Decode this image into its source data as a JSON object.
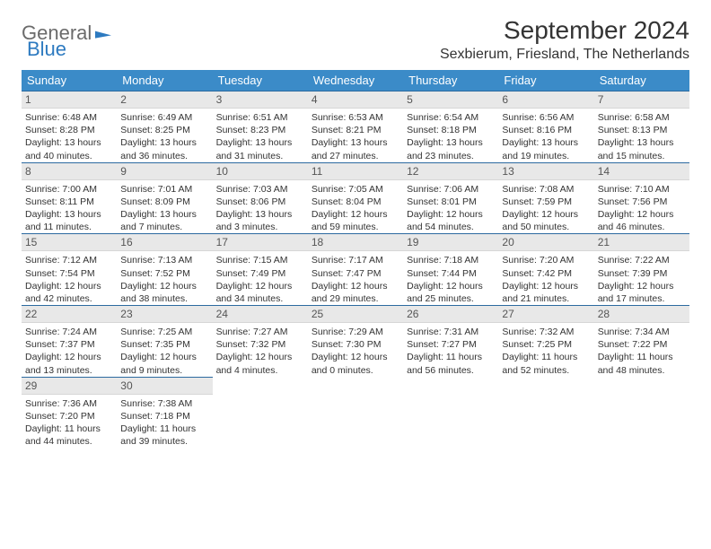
{
  "brand": {
    "part1": "General",
    "part2": "Blue"
  },
  "title": "September 2024",
  "location": "Sexbierum, Friesland, The Netherlands",
  "columns": [
    "Sunday",
    "Monday",
    "Tuesday",
    "Wednesday",
    "Thursday",
    "Friday",
    "Saturday"
  ],
  "style": {
    "header_bg": "#3b8bc8",
    "header_fg": "#ffffff",
    "daynum_bg": "#e8e8e8",
    "daynum_border_top": "#2c6aa0",
    "text_color": "#333333"
  },
  "weeks": [
    [
      {
        "n": "1",
        "sr": "6:48 AM",
        "ss": "8:28 PM",
        "dl": "13 hours and 40 minutes."
      },
      {
        "n": "2",
        "sr": "6:49 AM",
        "ss": "8:25 PM",
        "dl": "13 hours and 36 minutes."
      },
      {
        "n": "3",
        "sr": "6:51 AM",
        "ss": "8:23 PM",
        "dl": "13 hours and 31 minutes."
      },
      {
        "n": "4",
        "sr": "6:53 AM",
        "ss": "8:21 PM",
        "dl": "13 hours and 27 minutes."
      },
      {
        "n": "5",
        "sr": "6:54 AM",
        "ss": "8:18 PM",
        "dl": "13 hours and 23 minutes."
      },
      {
        "n": "6",
        "sr": "6:56 AM",
        "ss": "8:16 PM",
        "dl": "13 hours and 19 minutes."
      },
      {
        "n": "7",
        "sr": "6:58 AM",
        "ss": "8:13 PM",
        "dl": "13 hours and 15 minutes."
      }
    ],
    [
      {
        "n": "8",
        "sr": "7:00 AM",
        "ss": "8:11 PM",
        "dl": "13 hours and 11 minutes."
      },
      {
        "n": "9",
        "sr": "7:01 AM",
        "ss": "8:09 PM",
        "dl": "13 hours and 7 minutes."
      },
      {
        "n": "10",
        "sr": "7:03 AM",
        "ss": "8:06 PM",
        "dl": "13 hours and 3 minutes."
      },
      {
        "n": "11",
        "sr": "7:05 AM",
        "ss": "8:04 PM",
        "dl": "12 hours and 59 minutes."
      },
      {
        "n": "12",
        "sr": "7:06 AM",
        "ss": "8:01 PM",
        "dl": "12 hours and 54 minutes."
      },
      {
        "n": "13",
        "sr": "7:08 AM",
        "ss": "7:59 PM",
        "dl": "12 hours and 50 minutes."
      },
      {
        "n": "14",
        "sr": "7:10 AM",
        "ss": "7:56 PM",
        "dl": "12 hours and 46 minutes."
      }
    ],
    [
      {
        "n": "15",
        "sr": "7:12 AM",
        "ss": "7:54 PM",
        "dl": "12 hours and 42 minutes."
      },
      {
        "n": "16",
        "sr": "7:13 AM",
        "ss": "7:52 PM",
        "dl": "12 hours and 38 minutes."
      },
      {
        "n": "17",
        "sr": "7:15 AM",
        "ss": "7:49 PM",
        "dl": "12 hours and 34 minutes."
      },
      {
        "n": "18",
        "sr": "7:17 AM",
        "ss": "7:47 PM",
        "dl": "12 hours and 29 minutes."
      },
      {
        "n": "19",
        "sr": "7:18 AM",
        "ss": "7:44 PM",
        "dl": "12 hours and 25 minutes."
      },
      {
        "n": "20",
        "sr": "7:20 AM",
        "ss": "7:42 PM",
        "dl": "12 hours and 21 minutes."
      },
      {
        "n": "21",
        "sr": "7:22 AM",
        "ss": "7:39 PM",
        "dl": "12 hours and 17 minutes."
      }
    ],
    [
      {
        "n": "22",
        "sr": "7:24 AM",
        "ss": "7:37 PM",
        "dl": "12 hours and 13 minutes."
      },
      {
        "n": "23",
        "sr": "7:25 AM",
        "ss": "7:35 PM",
        "dl": "12 hours and 9 minutes."
      },
      {
        "n": "24",
        "sr": "7:27 AM",
        "ss": "7:32 PM",
        "dl": "12 hours and 4 minutes."
      },
      {
        "n": "25",
        "sr": "7:29 AM",
        "ss": "7:30 PM",
        "dl": "12 hours and 0 minutes."
      },
      {
        "n": "26",
        "sr": "7:31 AM",
        "ss": "7:27 PM",
        "dl": "11 hours and 56 minutes."
      },
      {
        "n": "27",
        "sr": "7:32 AM",
        "ss": "7:25 PM",
        "dl": "11 hours and 52 minutes."
      },
      {
        "n": "28",
        "sr": "7:34 AM",
        "ss": "7:22 PM",
        "dl": "11 hours and 48 minutes."
      }
    ],
    [
      {
        "n": "29",
        "sr": "7:36 AM",
        "ss": "7:20 PM",
        "dl": "11 hours and 44 minutes."
      },
      {
        "n": "30",
        "sr": "7:38 AM",
        "ss": "7:18 PM",
        "dl": "11 hours and 39 minutes."
      },
      null,
      null,
      null,
      null,
      null
    ]
  ],
  "labels": {
    "sunrise": "Sunrise: ",
    "sunset": "Sunset: ",
    "daylight": "Daylight: "
  }
}
